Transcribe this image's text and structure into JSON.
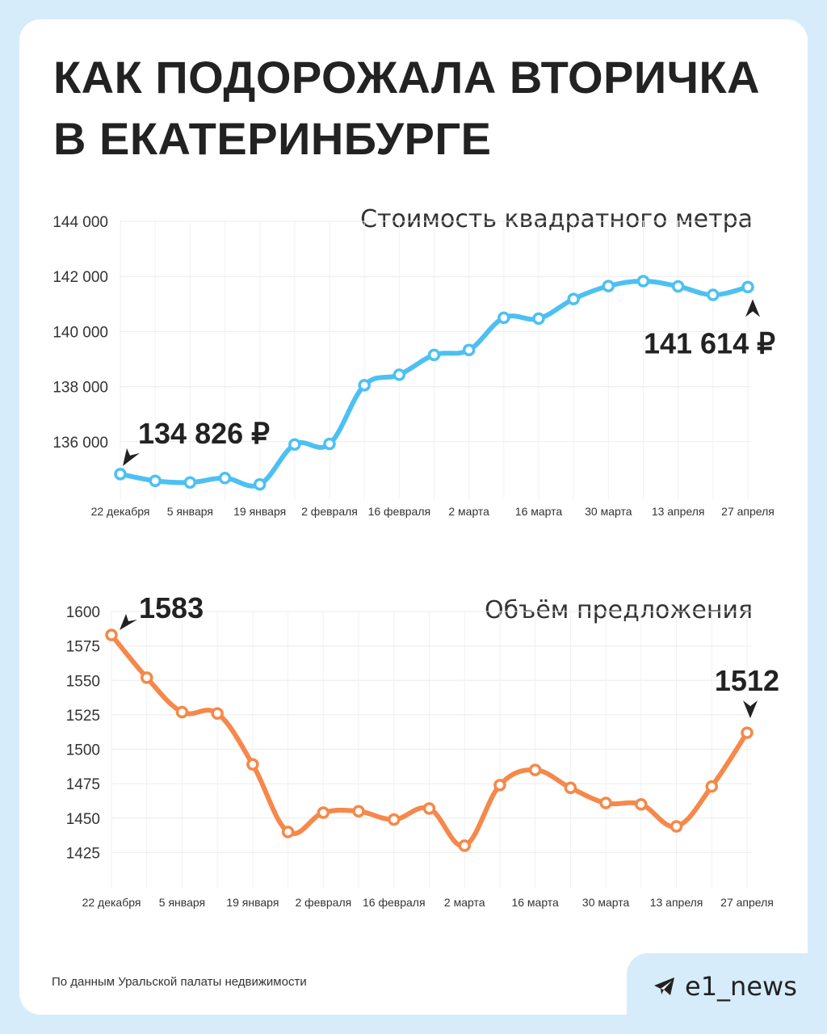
{
  "title": {
    "line1": "КАК ПОДОРОЖАЛА ВТОРИЧКА",
    "line2": "В ЕКАТЕРИНБУРГЕ"
  },
  "source": "По данным Уральской палаты недвижимости",
  "brand": {
    "name": "e1_news",
    "icon": "telegram-icon"
  },
  "colors": {
    "price_line": "#4dc0f2",
    "volume_line": "#f5884a",
    "text": "#222222",
    "grid": "#eeeeee",
    "background": "#d6ecfb"
  },
  "chart_data": [
    {
      "type": "line",
      "title": "Стоимость квадратного метра",
      "ylim": [
        134000,
        144000
      ],
      "yticks": [
        136000,
        138000,
        140000,
        142000,
        144000
      ],
      "ytick_labels": [
        "136 000",
        "138 000",
        "140 000",
        "142 000",
        "144 000"
      ],
      "xtick_labels": [
        "22 декабря",
        "5 января",
        "19 января",
        "2 февраля",
        "16 февраля",
        "2 марта",
        "16 марта",
        "30 марта",
        "13 апреля",
        "27 апреля"
      ],
      "grid": true,
      "values": [
        134826,
        134580,
        134520,
        134680,
        134450,
        135900,
        135920,
        138050,
        138430,
        139150,
        139330,
        140500,
        140470,
        141180,
        141650,
        141830,
        141640,
        141330,
        141614
      ],
      "annotations": [
        {
          "index": 0,
          "text": "134 826 ₽"
        },
        {
          "index": 18,
          "text": "141 614 ₽"
        }
      ]
    },
    {
      "type": "line",
      "title": "Объём предложения",
      "ylim": [
        1410,
        1600
      ],
      "yticks": [
        1425,
        1450,
        1475,
        1500,
        1525,
        1550,
        1575,
        1600
      ],
      "ytick_labels": [
        "1425",
        "1450",
        "1475",
        "1500",
        "1525",
        "1550",
        "1575",
        "1600"
      ],
      "xtick_labels": [
        "22 декабря",
        "5 января",
        "19 января",
        "2 февраля",
        "16 февраля",
        "2 марта",
        "16 марта",
        "30 марта",
        "13 апреля",
        "27 апреля"
      ],
      "grid": true,
      "values": [
        1583,
        1552,
        1527,
        1526,
        1489,
        1440,
        1454,
        1455,
        1449,
        1457,
        1430,
        1474,
        1485,
        1472,
        1461,
        1460,
        1444,
        1473,
        1512
      ],
      "annotations": [
        {
          "index": 0,
          "text": "1583"
        },
        {
          "index": 18,
          "text": "1512"
        }
      ]
    }
  ]
}
